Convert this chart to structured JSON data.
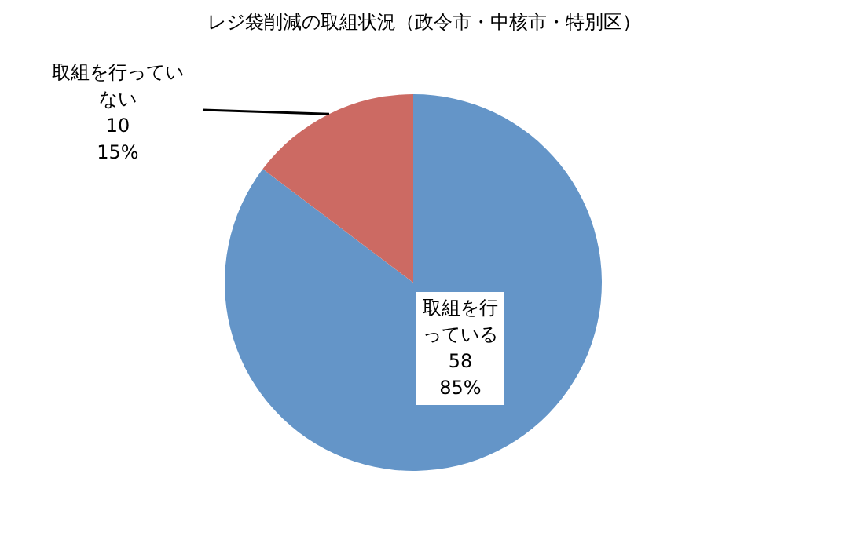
{
  "chart_data": {
    "type": "pie",
    "title": "レジ袋削減の取組状況（政令市・中核市・特別区）",
    "categories": [
      "取組を行っている",
      "取組を行っていない"
    ],
    "values": [
      58,
      10
    ],
    "colors": [
      "#6495c8",
      "#cc6a63"
    ],
    "value_labels": [
      "58\n85%",
      "10\n15%"
    ]
  }
}
